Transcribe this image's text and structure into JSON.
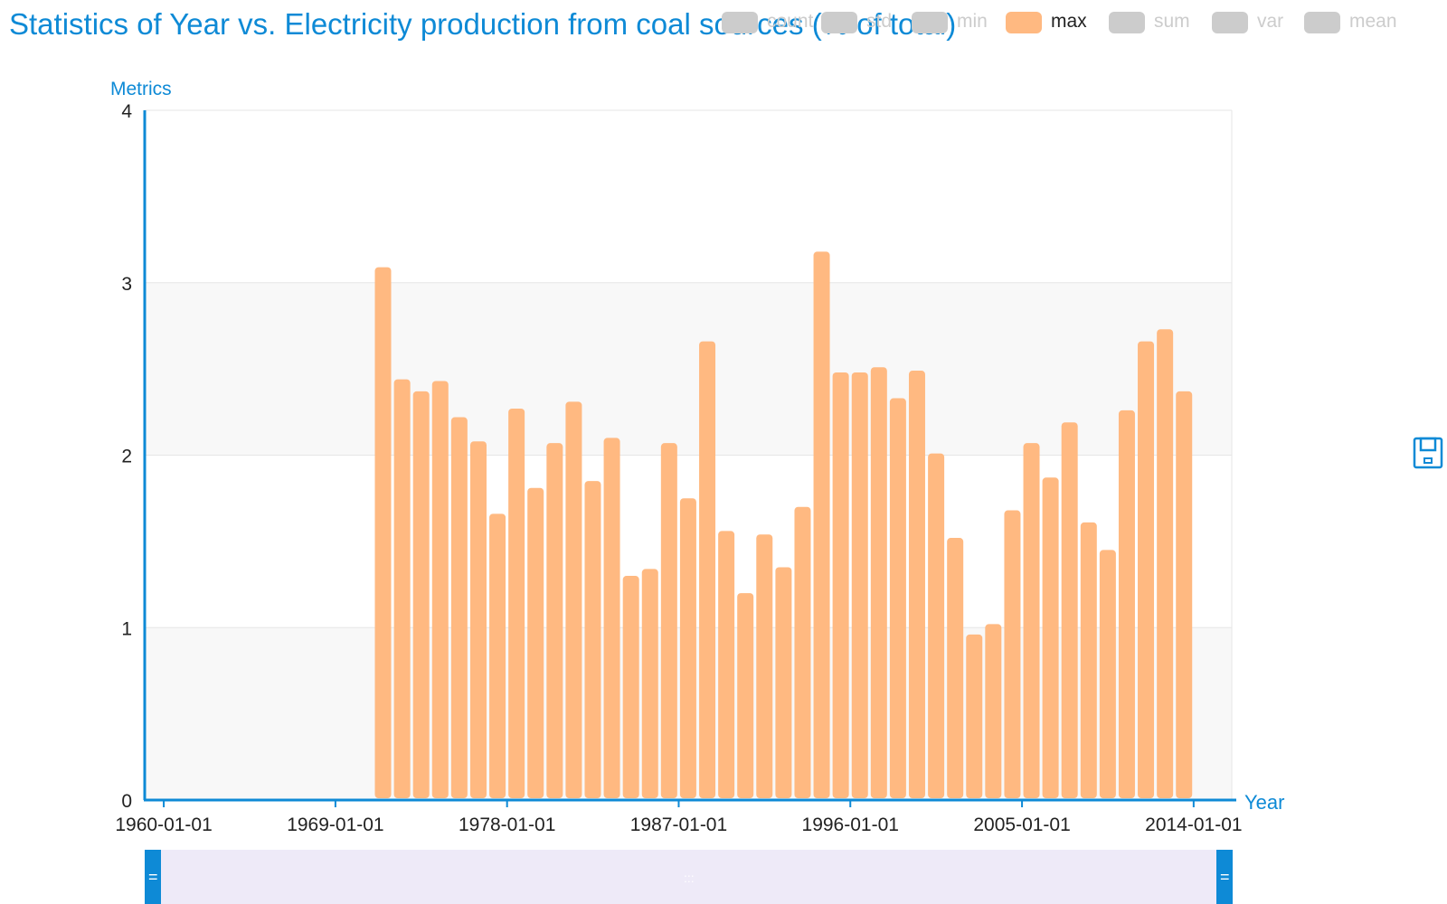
{
  "title": "Statistics of Year vs. Electricity production from coal sources (% of total)",
  "legend": [
    {
      "name": "count",
      "active": false
    },
    {
      "name": "std",
      "active": false
    },
    {
      "name": "min",
      "active": false
    },
    {
      "name": "max",
      "active": true
    },
    {
      "name": "sum",
      "active": false
    },
    {
      "name": "var",
      "active": false
    },
    {
      "name": "mean",
      "active": false
    }
  ],
  "colors": {
    "accent": "#0e8ad6",
    "bar": "#ffb981",
    "legend_inactive": "#cccccc",
    "zoom_fill": "#eeeaf8",
    "grid_band": "#f8f8f8",
    "grid_line": "#e6e6e6"
  },
  "toolbox": {
    "save_icon": "save-icon"
  },
  "chart_data": {
    "type": "bar",
    "title": "Statistics of Year vs. Electricity production from coal sources (% of total)",
    "xlabel": "Year",
    "ylabel": "Metrics",
    "x_axis_type": "time",
    "x_ticks": [
      "1960-01-01",
      "1969-01-01",
      "1978-01-01",
      "1987-01-01",
      "1996-01-01",
      "2005-01-01",
      "2014-01-01"
    ],
    "xlim": [
      "1959-01-01",
      "2016-01-01"
    ],
    "ylim": [
      0,
      4
    ],
    "y_ticks": [
      0,
      1,
      2,
      3,
      4
    ],
    "grid": true,
    "legend_position": "top-right",
    "series": [
      {
        "name": "max",
        "x": [
          "1971",
          "1972",
          "1973",
          "1974",
          "1975",
          "1976",
          "1977",
          "1978",
          "1979",
          "1980",
          "1981",
          "1982",
          "1983",
          "1984",
          "1985",
          "1986",
          "1987",
          "1988",
          "1989",
          "1990",
          "1991",
          "1992",
          "1993",
          "1994",
          "1995",
          "1996",
          "1997",
          "1998",
          "1999",
          "2000",
          "2001",
          "2002",
          "2003",
          "2004",
          "2005",
          "2006",
          "2007",
          "2008",
          "2009",
          "2010",
          "2011",
          "2012",
          "2013"
        ],
        "values": [
          3.09,
          2.44,
          2.37,
          2.43,
          2.22,
          2.08,
          1.66,
          2.27,
          1.81,
          2.07,
          2.31,
          1.85,
          2.1,
          1.3,
          1.34,
          2.07,
          1.75,
          2.66,
          1.56,
          1.2,
          1.54,
          1.35,
          1.7,
          3.18,
          2.48,
          2.48,
          2.51,
          2.33,
          2.49,
          2.01,
          1.52,
          0.96,
          1.02,
          1.68,
          2.07,
          1.87,
          2.19,
          1.61,
          1.45,
          2.26,
          2.66,
          2.73,
          2.37
        ]
      }
    ]
  }
}
